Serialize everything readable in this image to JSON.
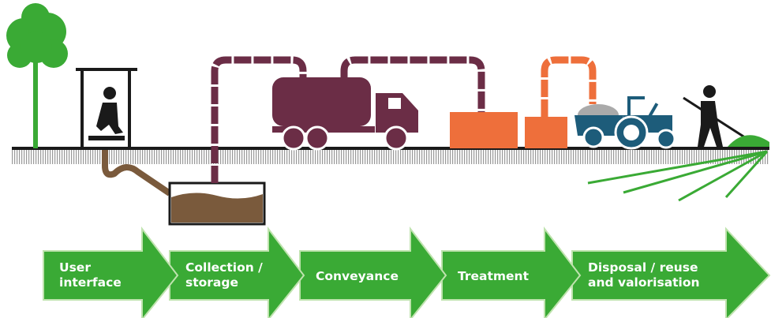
{
  "stages": [
    {
      "lines": [
        "User",
        "interface"
      ]
    },
    {
      "lines": [
        "Collection /",
        "storage"
      ]
    },
    {
      "lines": [
        "Conveyance"
      ]
    },
    {
      "lines": [
        "Treatment"
      ]
    },
    {
      "lines": [
        "Disposal / reuse",
        "and valorisation"
      ]
    }
  ]
}
